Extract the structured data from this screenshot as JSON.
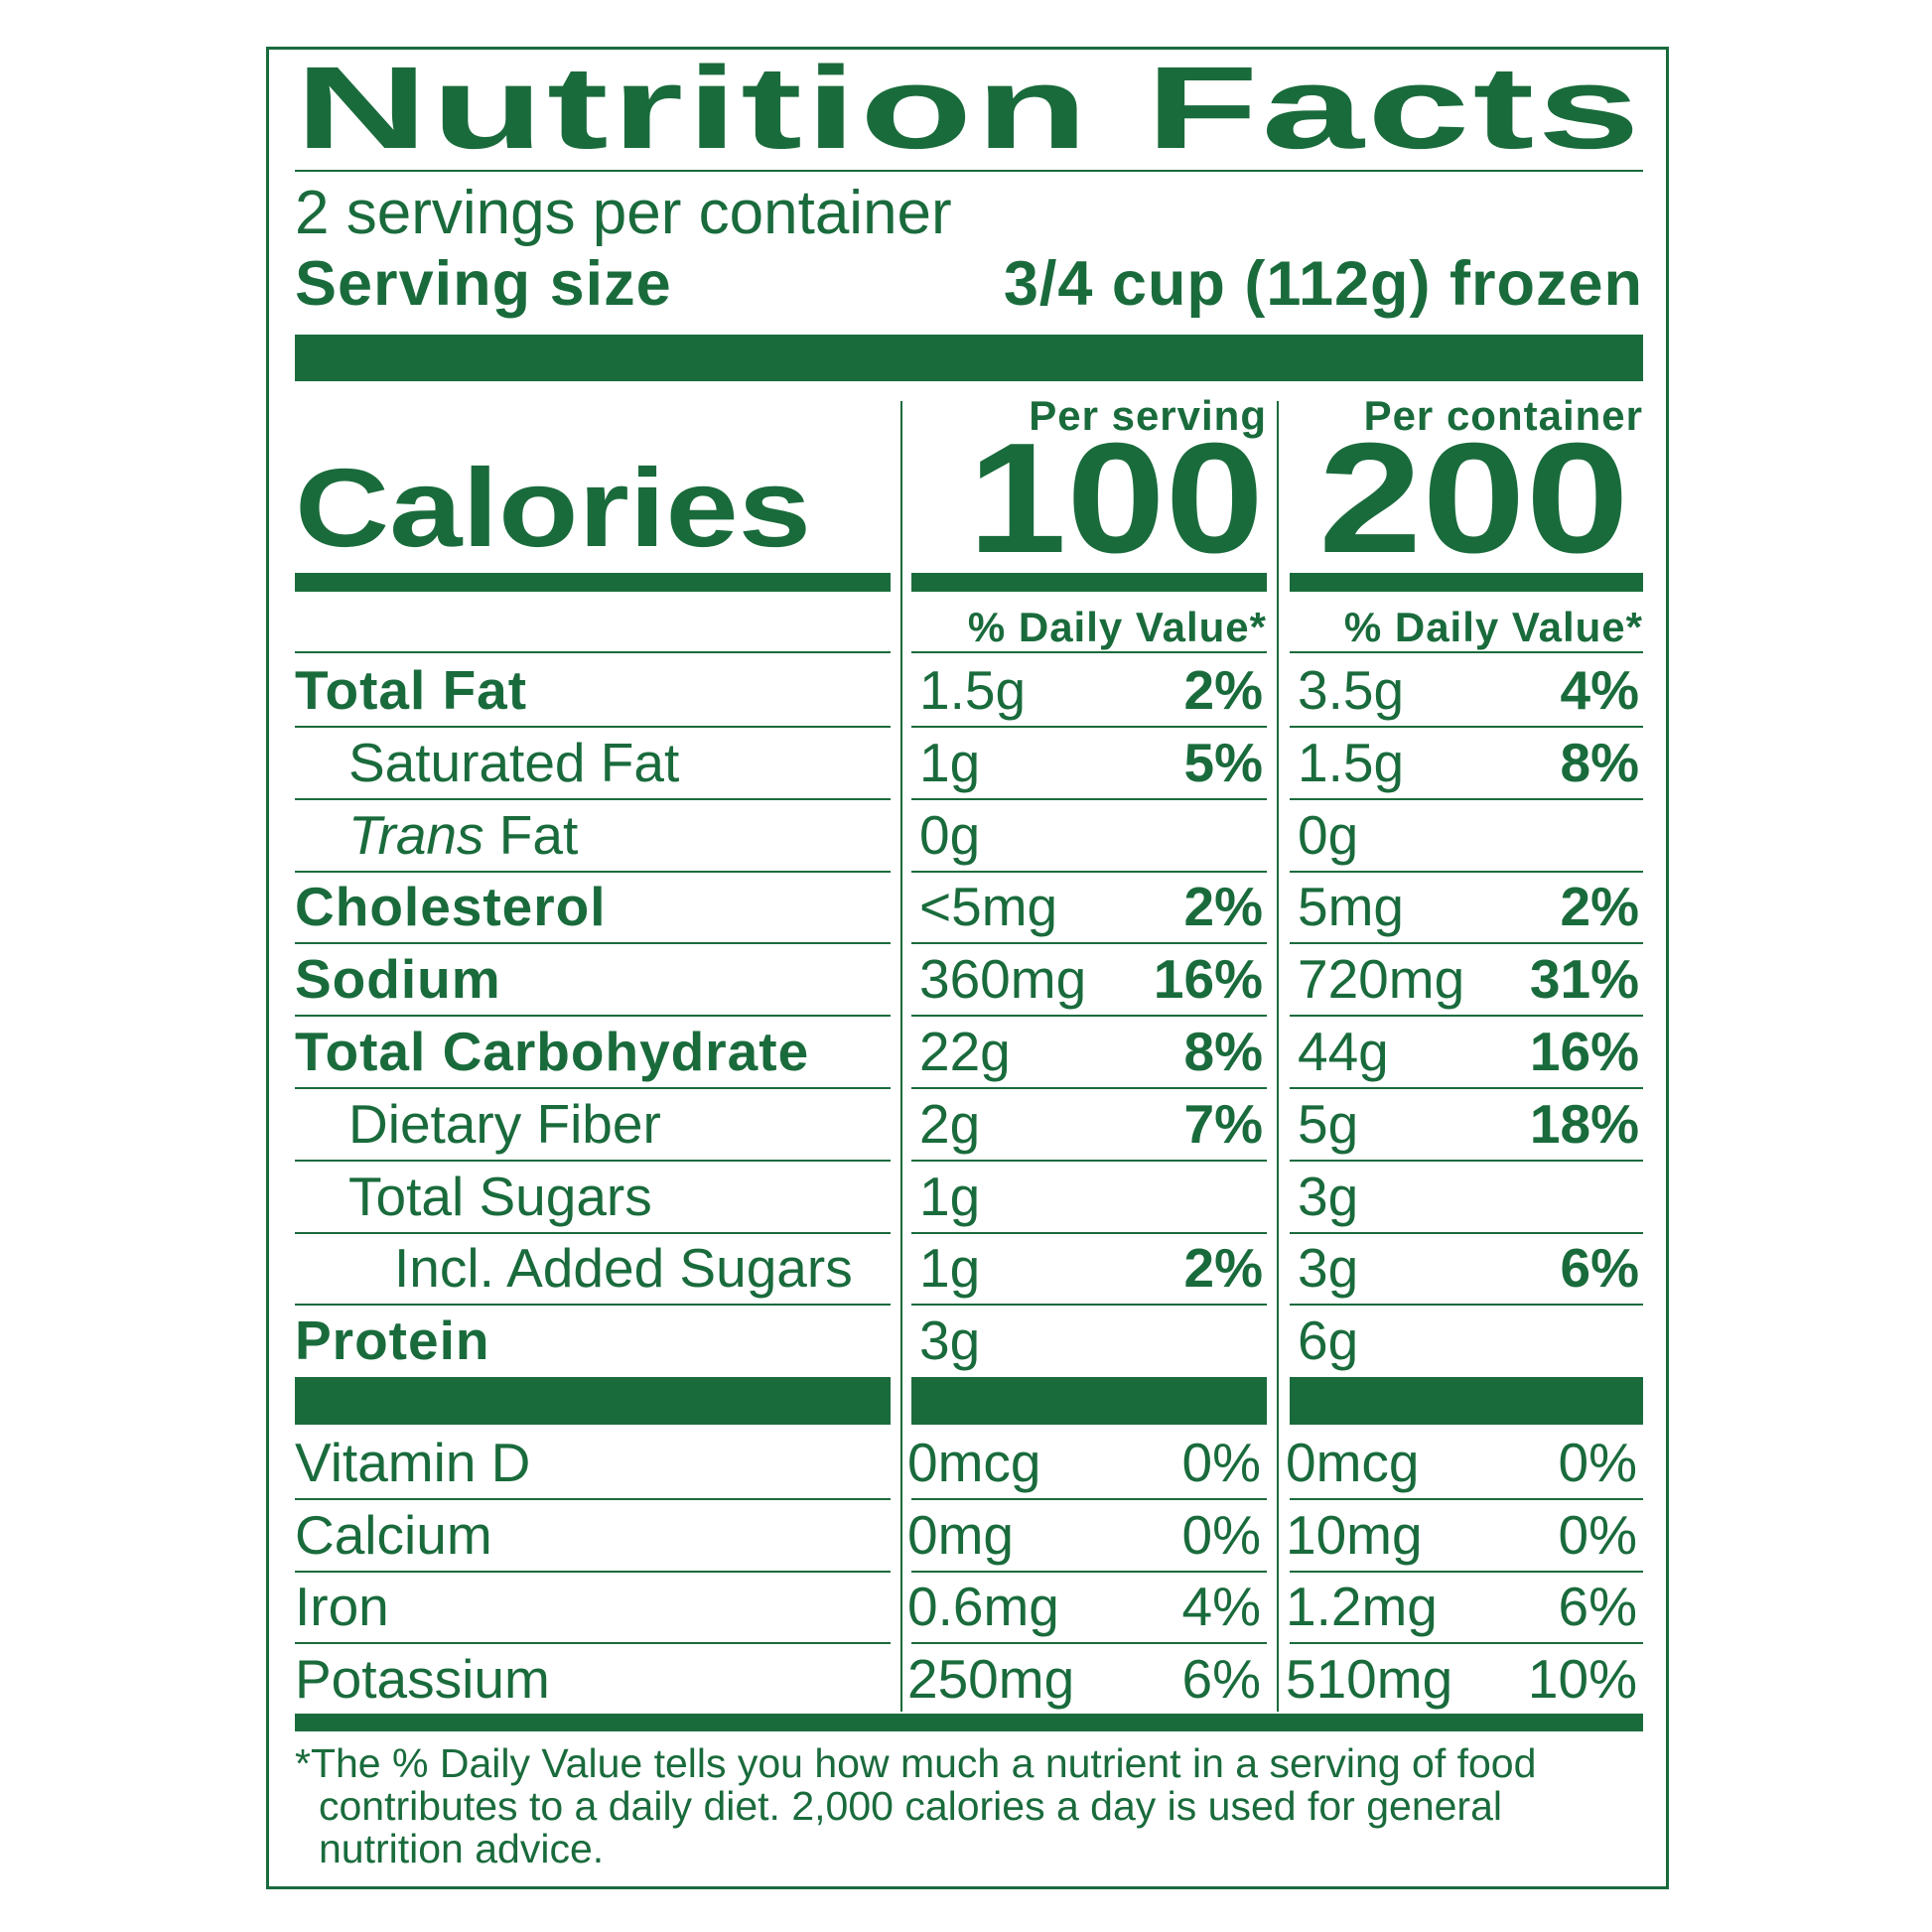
{
  "title": "Nutrition Facts",
  "servings_per_container": "2 servings per container",
  "serving_size_label": "Serving size",
  "serving_size_value": "3/4 cup (112g) frozen",
  "calories_label": "Calories",
  "per_serving_label": "Per serving",
  "per_container_label": "Per container",
  "calories_per_serving": "100",
  "calories_per_container": "200",
  "daily_value_header": "% Daily Value*",
  "nutrients": [
    {
      "name": "Total Fat",
      "style": "bold",
      "indent": 0,
      "serving_amount": "1.5g",
      "serving_dv": "2%",
      "container_amount": "3.5g",
      "container_dv": "4%"
    },
    {
      "name": "Saturated Fat",
      "style": "normal",
      "indent": 1,
      "serving_amount": "1g",
      "serving_dv": "5%",
      "container_amount": "1.5g",
      "container_dv": "8%"
    },
    {
      "name": "Fat",
      "name_italic_prefix": "Trans",
      "style": "normal",
      "indent": 1,
      "serving_amount": "0g",
      "serving_dv": "",
      "container_amount": "0g",
      "container_dv": ""
    },
    {
      "name": "Cholesterol",
      "style": "bold",
      "indent": 0,
      "serving_amount": "<5mg",
      "serving_dv": "2%",
      "container_amount": "5mg",
      "container_dv": "2%"
    },
    {
      "name": "Sodium",
      "style": "bold",
      "indent": 0,
      "serving_amount": "360mg",
      "serving_dv": "16%",
      "container_amount": "720mg",
      "container_dv": "31%"
    },
    {
      "name": "Total Carbohydrate",
      "style": "bold",
      "indent": 0,
      "serving_amount": "22g",
      "serving_dv": "8%",
      "container_amount": "44g",
      "container_dv": "16%"
    },
    {
      "name": "Dietary Fiber",
      "style": "normal",
      "indent": 1,
      "serving_amount": "2g",
      "serving_dv": "7%",
      "container_amount": "5g",
      "container_dv": "18%"
    },
    {
      "name": "Total Sugars",
      "style": "normal",
      "indent": 1,
      "serving_amount": "1g",
      "serving_dv": "",
      "container_amount": "3g",
      "container_dv": ""
    },
    {
      "name": "Incl. Added Sugars",
      "style": "normal",
      "indent": 2,
      "serving_amount": "1g",
      "serving_dv": "2%",
      "container_amount": "3g",
      "container_dv": "6%"
    },
    {
      "name": "Protein",
      "style": "bold",
      "indent": 0,
      "serving_amount": "3g",
      "serving_dv": "",
      "container_amount": "6g",
      "container_dv": ""
    }
  ],
  "vitamins": [
    {
      "name": "Vitamin D",
      "serving_amount": "0mcg",
      "serving_dv": "0%",
      "container_amount": "0mcg",
      "container_dv": "0%"
    },
    {
      "name": "Calcium",
      "serving_amount": "0mg",
      "serving_dv": "0%",
      "container_amount": "10mg",
      "container_dv": "0%"
    },
    {
      "name": "Iron",
      "serving_amount": "0.6mg",
      "serving_dv": "4%",
      "container_amount": "1.2mg",
      "container_dv": "6%"
    },
    {
      "name": "Potassium",
      "serving_amount": "250mg",
      "serving_dv": "6%",
      "container_amount": "510mg",
      "container_dv": "10%"
    }
  ],
  "footnote": [
    "*The % Daily Value tells you how much a nutrient in a serving of food",
    "contributes to a daily diet. 2,000 calories a day is used for general",
    "nutrition advice."
  ],
  "colors": {
    "ink": "#1a6b3c",
    "background": "#ffffff"
  }
}
